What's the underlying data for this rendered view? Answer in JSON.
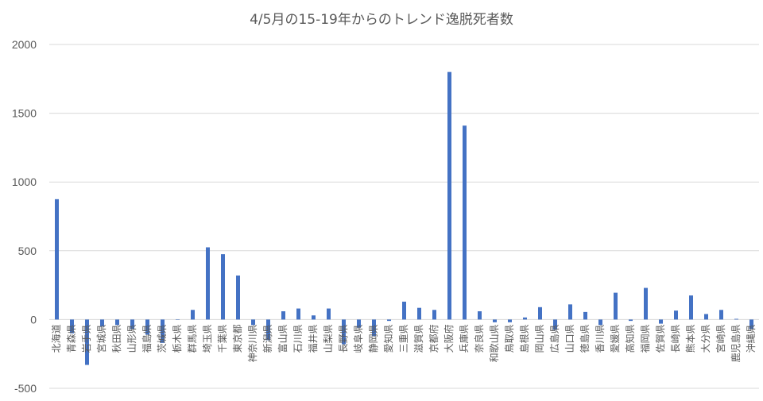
{
  "chart_data": {
    "type": "bar",
    "title": "4/5月の15-19年からのトレンド逸脱死者数",
    "xlabel": "",
    "ylabel": "",
    "ylim": [
      -500,
      2000
    ],
    "yticks": [
      2000,
      1500,
      1000,
      500,
      0,
      -500
    ],
    "grid": true,
    "legend": "none",
    "bar_color": "#4472c4",
    "categories": [
      "北海道",
      "青森県",
      "岩手県",
      "宮城県",
      "秋田県",
      "山形県",
      "福島県",
      "茨城県",
      "栃木県",
      "群馬県",
      "埼玉県",
      "千葉県",
      "東京都",
      "神奈川県",
      "新潟県",
      "富山県",
      "石川県",
      "福井県",
      "山梨県",
      "長野県",
      "岐阜県",
      "静岡県",
      "愛知県",
      "三重県",
      "滋賀県",
      "京都府",
      "大阪府",
      "兵庫県",
      "奈良県",
      "和歌山県",
      "鳥取県",
      "島根県",
      "岡山県",
      "広島県",
      "山口県",
      "徳島県",
      "香川県",
      "愛媛県",
      "高知県",
      "福岡県",
      "佐賀県",
      "長崎県",
      "熊本県",
      "大分県",
      "宮崎県",
      "鹿児島県",
      "沖縄県"
    ],
    "values": [
      875,
      -100,
      -330,
      -50,
      -40,
      -70,
      -110,
      -170,
      0,
      70,
      525,
      475,
      320,
      -40,
      -150,
      60,
      80,
      30,
      80,
      -180,
      -60,
      -120,
      -10,
      130,
      85,
      70,
      1800,
      1410,
      60,
      -20,
      -20,
      15,
      90,
      -75,
      110,
      55,
      -40,
      195,
      -10,
      230,
      -30,
      65,
      175,
      40,
      70,
      5,
      -70
    ]
  }
}
